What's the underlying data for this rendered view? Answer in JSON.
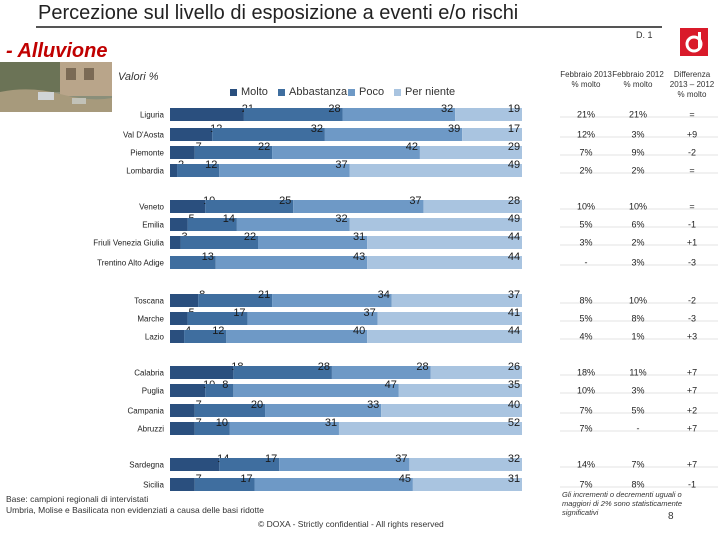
{
  "page": {
    "title": "Percezione sul livello di esposizione a eventi e/o rischi",
    "code": "D. 1",
    "subtitle": "- Alluvione",
    "unit": "Valori %",
    "footer_line1": "Base: campioni regionali di intervistati",
    "footer_line2": "Umbria, Molise e Basilicata non evidenziati a causa delle basi ridotte",
    "copyright": "© DOXA - Strictly confidential - All rights reserved",
    "note": "Gli incrementi o decrementi uguali o maggiori di 2% sono statisticamente significativi",
    "page_number": "8",
    "logo_icon": "doxa-logo-icon",
    "photo_icon": "flood-photo-icon"
  },
  "legend": [
    {
      "name": "Molto",
      "color": "#2a4f7e"
    },
    {
      "name": "Abbastanza",
      "color": "#3f6e9f"
    },
    {
      "name": "Poco",
      "color": "#6e99c6"
    },
    {
      "name": "Per niente",
      "color": "#a9c4e0"
    }
  ],
  "table_headers": [
    "Febbraio 2013 % molto",
    "Febbraio 2012 % molto",
    "Differenza 2013 – 2012 % molto"
  ],
  "chart_data": {
    "type": "bar",
    "orientation": "horizontal",
    "stacked": true,
    "title": "Percezione sul livello di esposizione a eventi e/o rischi - Alluvione",
    "unit": "Valori %",
    "series_names": [
      "Molto",
      "Abbastanza",
      "Poco",
      "Per niente"
    ],
    "rows": [
      {
        "region": "Liguria",
        "values": [
          21,
          28,
          32,
          19
        ],
        "y2013": "21%",
        "y2012": "21%",
        "diff": "="
      },
      {
        "region": "Val D'Aosta",
        "values": [
          12,
          32,
          39,
          17
        ],
        "y2013": "12%",
        "y2012": "3%",
        "diff": "+9"
      },
      {
        "region": "Piemonte",
        "values": [
          7,
          22,
          42,
          29
        ],
        "y2013": "7%",
        "y2012": "9%",
        "diff": "-2"
      },
      {
        "region": "Lombardia",
        "values": [
          2,
          12,
          37,
          49
        ],
        "y2013": "2%",
        "y2012": "2%",
        "diff": "="
      },
      {
        "region": "Veneto",
        "values": [
          10,
          25,
          37,
          28
        ],
        "y2013": "10%",
        "y2012": "10%",
        "diff": "="
      },
      {
        "region": "Emilia",
        "values": [
          5,
          14,
          32,
          49
        ],
        "y2013": "5%",
        "y2012": "6%",
        "diff": "-1"
      },
      {
        "region": "Friuli Venezia Giulia",
        "values": [
          3,
          22,
          31,
          44
        ],
        "y2013": "3%",
        "y2012": "2%",
        "diff": "+1"
      },
      {
        "region": "Trentino Alto Adige",
        "values": [
          0,
          13,
          43,
          44
        ],
        "y2013": "-",
        "y2012": "3%",
        "diff": "-3"
      },
      {
        "region": "Toscana",
        "values": [
          8,
          21,
          34,
          37
        ],
        "y2013": "8%",
        "y2012": "10%",
        "diff": "-2"
      },
      {
        "region": "Marche",
        "values": [
          5,
          17,
          37,
          41
        ],
        "y2013": "5%",
        "y2012": "8%",
        "diff": "-3"
      },
      {
        "region": "Lazio",
        "values": [
          4,
          12,
          40,
          44
        ],
        "y2013": "4%",
        "y2012": "1%",
        "diff": "+3"
      },
      {
        "region": "Calabria",
        "values": [
          18,
          28,
          28,
          26
        ],
        "y2013": "18%",
        "y2012": "11%",
        "diff": "+7"
      },
      {
        "region": "Puglia",
        "values": [
          10,
          8,
          47,
          35
        ],
        "y2013": "10%",
        "y2012": "3%",
        "diff": "+7"
      },
      {
        "region": "Campania",
        "values": [
          7,
          20,
          33,
          40
        ],
        "y2013": "7%",
        "y2012": "5%",
        "diff": "+2"
      },
      {
        "region": "Abruzzi",
        "values": [
          7,
          10,
          31,
          52
        ],
        "y2013": "7%",
        "y2012": "-",
        "diff": "+7"
      },
      {
        "region": "Sardegna",
        "values": [
          14,
          17,
          37,
          32
        ],
        "y2013": "14%",
        "y2012": "7%",
        "diff": "+7"
      },
      {
        "region": "Sicilia",
        "values": [
          7,
          17,
          45,
          31
        ],
        "y2013": "7%",
        "y2012": "8%",
        "diff": "-1"
      }
    ]
  }
}
